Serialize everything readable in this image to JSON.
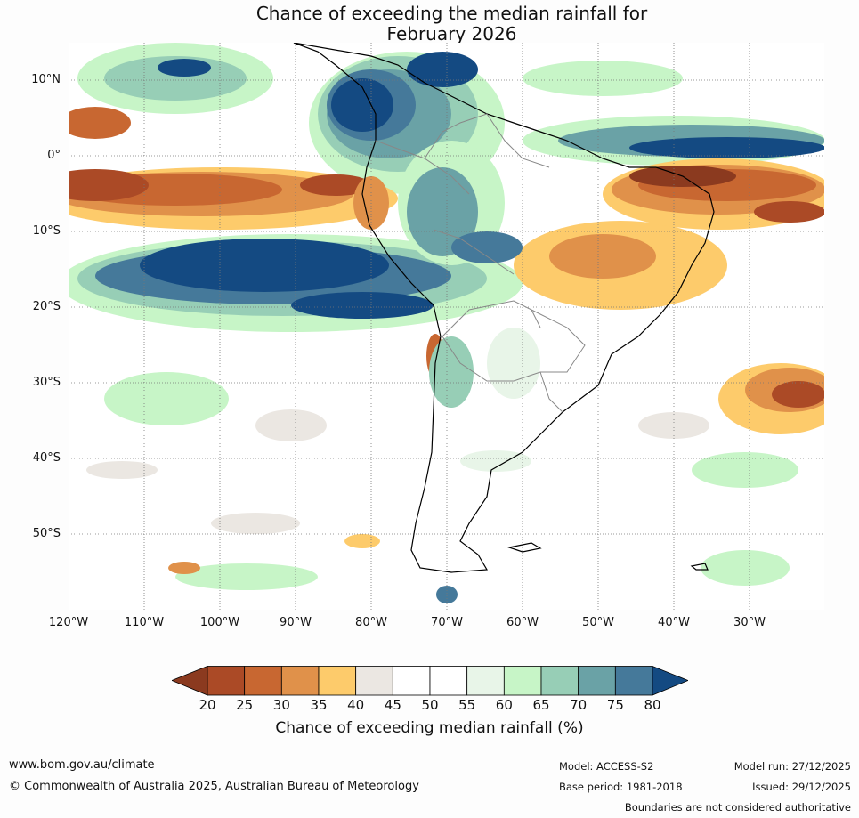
{
  "title": {
    "line1": "Chance of exceeding the median rainfall for",
    "line2": "February 2026"
  },
  "map": {
    "lat_labels": [
      "10°N",
      "0°",
      "10°S",
      "20°S",
      "30°S",
      "40°S",
      "50°S"
    ],
    "lon_labels": [
      "120°W",
      "110°W",
      "100°W",
      "90°W",
      "80°W",
      "70°W",
      "60°W",
      "50°W",
      "40°W",
      "30°W"
    ]
  },
  "colorbar": {
    "ticks": [
      "20",
      "25",
      "30",
      "35",
      "40",
      "45",
      "50",
      "55",
      "60",
      "65",
      "70",
      "75",
      "80"
    ],
    "colors": [
      "#8b3a1f",
      "#ab4a26",
      "#c86731",
      "#e0914a",
      "#fdcb6b",
      "#ebe7e2",
      "#ffffff",
      "#ffffff",
      "#e8f5e8",
      "#c7f5c7",
      "#97ceb6",
      "#6aa2a6",
      "#45799a",
      "#144a82"
    ],
    "title": "Chance of exceeding median rainfall (%)"
  },
  "footer": {
    "url": "www.bom.gov.au/climate",
    "copyright": "© Commonwealth of Australia 2025, Australian Bureau of Meteorology",
    "model": "Model: ACCESS-S2",
    "base_period": "Base period: 1981-2018",
    "model_run": "Model run: 27/12/2025",
    "issued": "Issued: 29/12/2025",
    "disclaimer": "Boundaries are not considered authoritative"
  }
}
